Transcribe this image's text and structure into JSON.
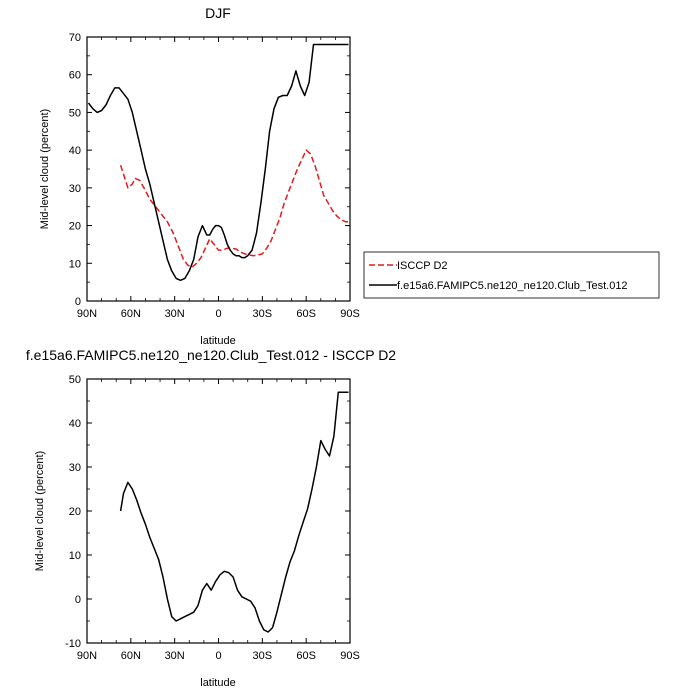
{
  "chart_data": [
    {
      "type": "line",
      "title": "DJF",
      "xlabel": "latitude",
      "ylabel": "Mid-level cloud (percent)",
      "xlim": [
        90,
        -90
      ],
      "ylim": [
        0,
        70
      ],
      "xtick_values": [
        90,
        60,
        30,
        0,
        -30,
        -60,
        -90
      ],
      "xtick_labels": [
        "90N",
        "60N",
        "30N",
        "0",
        "30S",
        "60S",
        "90S"
      ],
      "ytick_values": [
        0,
        10,
        20,
        30,
        40,
        50,
        60,
        70
      ],
      "ytick_labels": [
        "0",
        "10",
        "20",
        "30",
        "40",
        "50",
        "60",
        "70"
      ],
      "grid": false,
      "legend_position": "right",
      "series": [
        {
          "name": "ISCCP D2",
          "color": "#e41a1c",
          "dash": "dashed",
          "x": [
            67,
            62,
            59,
            57,
            54,
            51,
            47,
            43,
            39,
            35,
            31,
            27,
            24,
            21,
            18,
            15,
            12,
            9,
            6,
            3,
            0,
            -3,
            -6,
            -9,
            -12,
            -15,
            -18,
            -21,
            -24,
            -27,
            -30,
            -33,
            -36,
            -39,
            -42,
            -45,
            -48,
            -51,
            -54,
            -57,
            -60,
            -63,
            -66,
            -69,
            -72,
            -75,
            -78,
            -81,
            -84,
            -87,
            -89
          ],
          "y": [
            36,
            30,
            31,
            32.5,
            32,
            30,
            27,
            25,
            23,
            21,
            18,
            14,
            11,
            9.5,
            9,
            10,
            11.5,
            14,
            16.5,
            15,
            13.5,
            13.5,
            14,
            14,
            13.8,
            13,
            12.5,
            12.2,
            12,
            12.2,
            12.5,
            14,
            16,
            19,
            22,
            26,
            29,
            32,
            35,
            37.5,
            40,
            39,
            36,
            32,
            28,
            26,
            24,
            22.5,
            21.5,
            21,
            21
          ]
        },
        {
          "name": "f.e15a6.FAMIPC5.ne120_ne120.Club_Test.012",
          "color": "#000000",
          "dash": "solid",
          "x": [
            89,
            86,
            83,
            80,
            77,
            74,
            71,
            68,
            65,
            62,
            59,
            56,
            53,
            50,
            47,
            44,
            41,
            38,
            35,
            32,
            29,
            26,
            23,
            20,
            17,
            14,
            11,
            8,
            6,
            4,
            2,
            0,
            -2,
            -4,
            -6,
            -8,
            -10,
            -12,
            -14,
            -16,
            -18,
            -20,
            -23,
            -26,
            -29,
            -32,
            -35,
            -38,
            -41,
            -44,
            -47,
            -50,
            -53,
            -56,
            -59,
            -62,
            -65,
            -68,
            -71,
            -74,
            -77,
            -80,
            -83,
            -86,
            -89
          ],
          "y": [
            52.5,
            51,
            50,
            50.5,
            52,
            54.5,
            56.5,
            56.5,
            55,
            53.5,
            50,
            45,
            40,
            35,
            31,
            26,
            21,
            16,
            11,
            8,
            6,
            5.5,
            6,
            8,
            11,
            17,
            20,
            17.5,
            17.5,
            19,
            20,
            20,
            19.5,
            17.5,
            15,
            13.5,
            12.5,
            12,
            12,
            11.5,
            11.5,
            12,
            13.5,
            18,
            26,
            35,
            45,
            51,
            54,
            54.5,
            54.5,
            57,
            61,
            57,
            54.5,
            58,
            68,
            68,
            68,
            68,
            68,
            68,
            68,
            68,
            68
          ]
        }
      ]
    },
    {
      "type": "line",
      "title": "f.e15a6.FAMIPC5.ne120_ne120.Club_Test.012 - ISCCP D2",
      "xlabel": "latitude",
      "ylabel": "Mid-level cloud (percent)",
      "xlim": [
        90,
        -90
      ],
      "ylim": [
        -10,
        50
      ],
      "xtick_values": [
        90,
        60,
        30,
        0,
        -30,
        -60,
        -90
      ],
      "xtick_labels": [
        "90N",
        "60N",
        "30N",
        "0",
        "30S",
        "60S",
        "90S"
      ],
      "ytick_values": [
        -10,
        0,
        10,
        20,
        30,
        40,
        50
      ],
      "ytick_labels": [
        "-10",
        "0",
        "10",
        "20",
        "30",
        "40",
        "50"
      ],
      "grid": false,
      "series": [
        {
          "color": "#000000",
          "dash": "solid",
          "x": [
            67,
            65,
            62,
            59,
            56,
            53,
            50,
            47,
            44,
            41,
            38,
            35,
            32,
            29,
            26,
            23,
            20,
            17,
            14,
            11,
            8,
            5,
            2,
            -1,
            -4,
            -7,
            -10,
            -13,
            -16,
            -19,
            -22,
            -25,
            -28,
            -31,
            -34,
            -37,
            -40,
            -43,
            -46,
            -49,
            -52,
            -55,
            -58,
            -61,
            -64,
            -67,
            -70,
            -73,
            -76,
            -79,
            -82,
            -85,
            -88,
            -89
          ],
          "y": [
            20,
            24,
            26.5,
            25,
            22.5,
            19.5,
            17,
            14,
            11.5,
            9,
            5,
            0,
            -4,
            -5,
            -4.5,
            -4,
            -3.5,
            -3,
            -1.5,
            2,
            3.5,
            2,
            4,
            5.5,
            6.3,
            6,
            5,
            2,
            0.5,
            0,
            -0.5,
            -2,
            -5,
            -7,
            -7.5,
            -6.5,
            -3,
            1,
            5,
            8.5,
            11,
            14.5,
            17.5,
            20.5,
            25,
            30,
            36,
            34,
            32.5,
            37,
            47,
            47,
            47,
            47
          ]
        }
      ]
    }
  ]
}
